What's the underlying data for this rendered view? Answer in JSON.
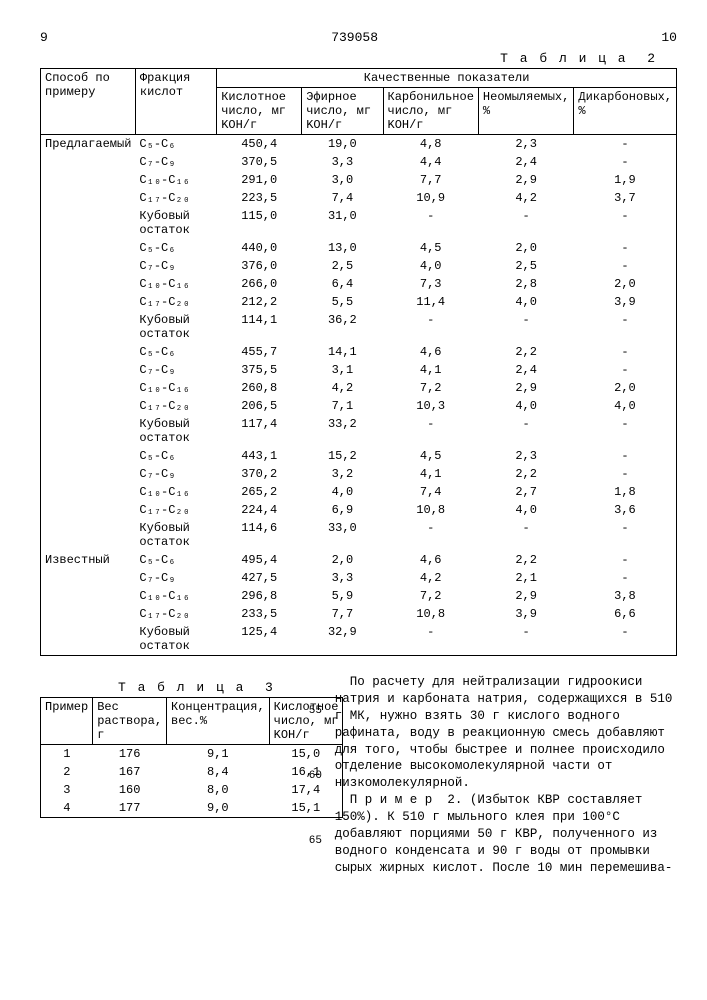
{
  "page_left": "9",
  "patent": "739058",
  "page_right": "10",
  "table2": {
    "caption": "Т а б л и ц а  2",
    "head": {
      "c1": "Способ по примеру",
      "c2": "Фракция кислот",
      "qual": "Качественные показатели",
      "q1": "Кислотное число, мг KOH/г",
      "q2": "Эфирное число, мг KOH/г",
      "q3": "Карбонильное число, мг KOH/г",
      "q4": "Неомыляемых, %",
      "q5": "Дикарбоновых, %"
    },
    "groups": [
      {
        "label": "Предлагаемый",
        "rows": [
          {
            "f": "C₅-C₆",
            "v": [
              "450,4",
              "19,0",
              "4,8",
              "2,3",
              "-"
            ]
          },
          {
            "f": "C₇-C₉",
            "v": [
              "370,5",
              "3,3",
              "4,4",
              "2,4",
              "-"
            ]
          },
          {
            "f": "C₁₀-C₁₆",
            "v": [
              "291,0",
              "3,0",
              "7,7",
              "2,9",
              "1,9"
            ]
          },
          {
            "f": "C₁₇-C₂₀",
            "v": [
              "223,5",
              "7,4",
              "10,9",
              "4,2",
              "3,7"
            ]
          },
          {
            "f": "Кубовый остаток",
            "v": [
              "115,0",
              "31,0",
              "-",
              "-",
              "-"
            ]
          },
          {
            "f": "C₅-C₆",
            "v": [
              "440,0",
              "13,0",
              "4,5",
              "2,0",
              "-"
            ]
          },
          {
            "f": "C₇-C₉",
            "v": [
              "376,0",
              "2,5",
              "4,0",
              "2,5",
              "-"
            ]
          },
          {
            "f": "C₁₀-C₁₆",
            "v": [
              "266,0",
              "6,4",
              "7,3",
              "2,8",
              "2,0"
            ]
          },
          {
            "f": "C₁₇-C₂₀",
            "v": [
              "212,2",
              "5,5",
              "11,4",
              "4,0",
              "3,9"
            ]
          },
          {
            "f": "Кубовый остаток",
            "v": [
              "114,1",
              "36,2",
              "-",
              "-",
              "-"
            ]
          },
          {
            "f": "C₅-C₆",
            "v": [
              "455,7",
              "14,1",
              "4,6",
              "2,2",
              "-"
            ]
          },
          {
            "f": "C₇-C₉",
            "v": [
              "375,5",
              "3,1",
              "4,1",
              "2,4",
              "-"
            ]
          },
          {
            "f": "C₁₀-C₁₆",
            "v": [
              "260,8",
              "4,2",
              "7,2",
              "2,9",
              "2,0"
            ]
          },
          {
            "f": "C₁₇-C₂₀",
            "v": [
              "206,5",
              "7,1",
              "10,3",
              "4,0",
              "4,0"
            ]
          },
          {
            "f": "Кубовый остаток",
            "v": [
              "117,4",
              "33,2",
              "-",
              "-",
              "-"
            ]
          },
          {
            "f": "C₅-C₆",
            "v": [
              "443,1",
              "15,2",
              "4,5",
              "2,3",
              "-"
            ]
          },
          {
            "f": "C₇-C₉",
            "v": [
              "370,2",
              "3,2",
              "4,1",
              "2,2",
              "-"
            ]
          },
          {
            "f": "C₁₀-C₁₆",
            "v": [
              "265,2",
              "4,0",
              "7,4",
              "2,7",
              "1,8"
            ]
          },
          {
            "f": "C₁₇-C₂₀",
            "v": [
              "224,4",
              "6,9",
              "10,8",
              "4,0",
              "3,6"
            ]
          },
          {
            "f": "Кубовый остаток",
            "v": [
              "114,6",
              "33,0",
              "-",
              "-",
              "-"
            ]
          }
        ]
      },
      {
        "label": "Известный",
        "rows": [
          {
            "f": "C₅-C₆",
            "v": [
              "495,4",
              "2,0",
              "4,6",
              "2,2",
              "-"
            ]
          },
          {
            "f": "C₇-C₉",
            "v": [
              "427,5",
              "3,3",
              "4,2",
              "2,1",
              "-"
            ]
          },
          {
            "f": "C₁₀-C₁₆",
            "v": [
              "296,8",
              "5,9",
              "7,2",
              "2,9",
              "3,8"
            ]
          },
          {
            "f": "C₁₇-C₂₀",
            "v": [
              "233,5",
              "7,7",
              "10,8",
              "3,9",
              "6,6"
            ]
          },
          {
            "f": "Кубовый остаток",
            "v": [
              "125,4",
              "32,9",
              "-",
              "-",
              "-"
            ]
          }
        ]
      }
    ]
  },
  "table3": {
    "caption": "Т а б л и ц а  3",
    "head": {
      "c1": "Пример",
      "c2": "Вес раствора, г",
      "c3": "Концентрация, вес.%",
      "c4": "Кислотное число, мг KOH/г"
    },
    "rows": [
      {
        "v": [
          "1",
          "176",
          "9,1",
          "15,0"
        ]
      },
      {
        "v": [
          "2",
          "167",
          "8,4",
          "16,1"
        ]
      },
      {
        "v": [
          "3",
          "160",
          "8,0",
          "17,4"
        ]
      },
      {
        "v": [
          "4",
          "177",
          "9,0",
          "15,1"
        ]
      }
    ]
  },
  "body_text": "По расчету для нейтрализации гидроокиси натрия и карбоната натрия, содержащихся в 510 г МК, нужно взять 30 г кислого водного рафината, воду в реакционную смесь добавляют для того, чтобы быстрее и полнее происходило отделение высокомолекулярной части от низкомолекулярной.\n  П р и м е р  2. (Избыток КВР составляет 150%). К 510 г мыльного клея при 100°С добавляют порциями 50 г КВР, полученного из водного конденсата и 90 г воды от промывки сырых жирных кислот. После 10 мин перемешива-",
  "line_nums": {
    "a": "55",
    "b": "60",
    "c": "65"
  }
}
